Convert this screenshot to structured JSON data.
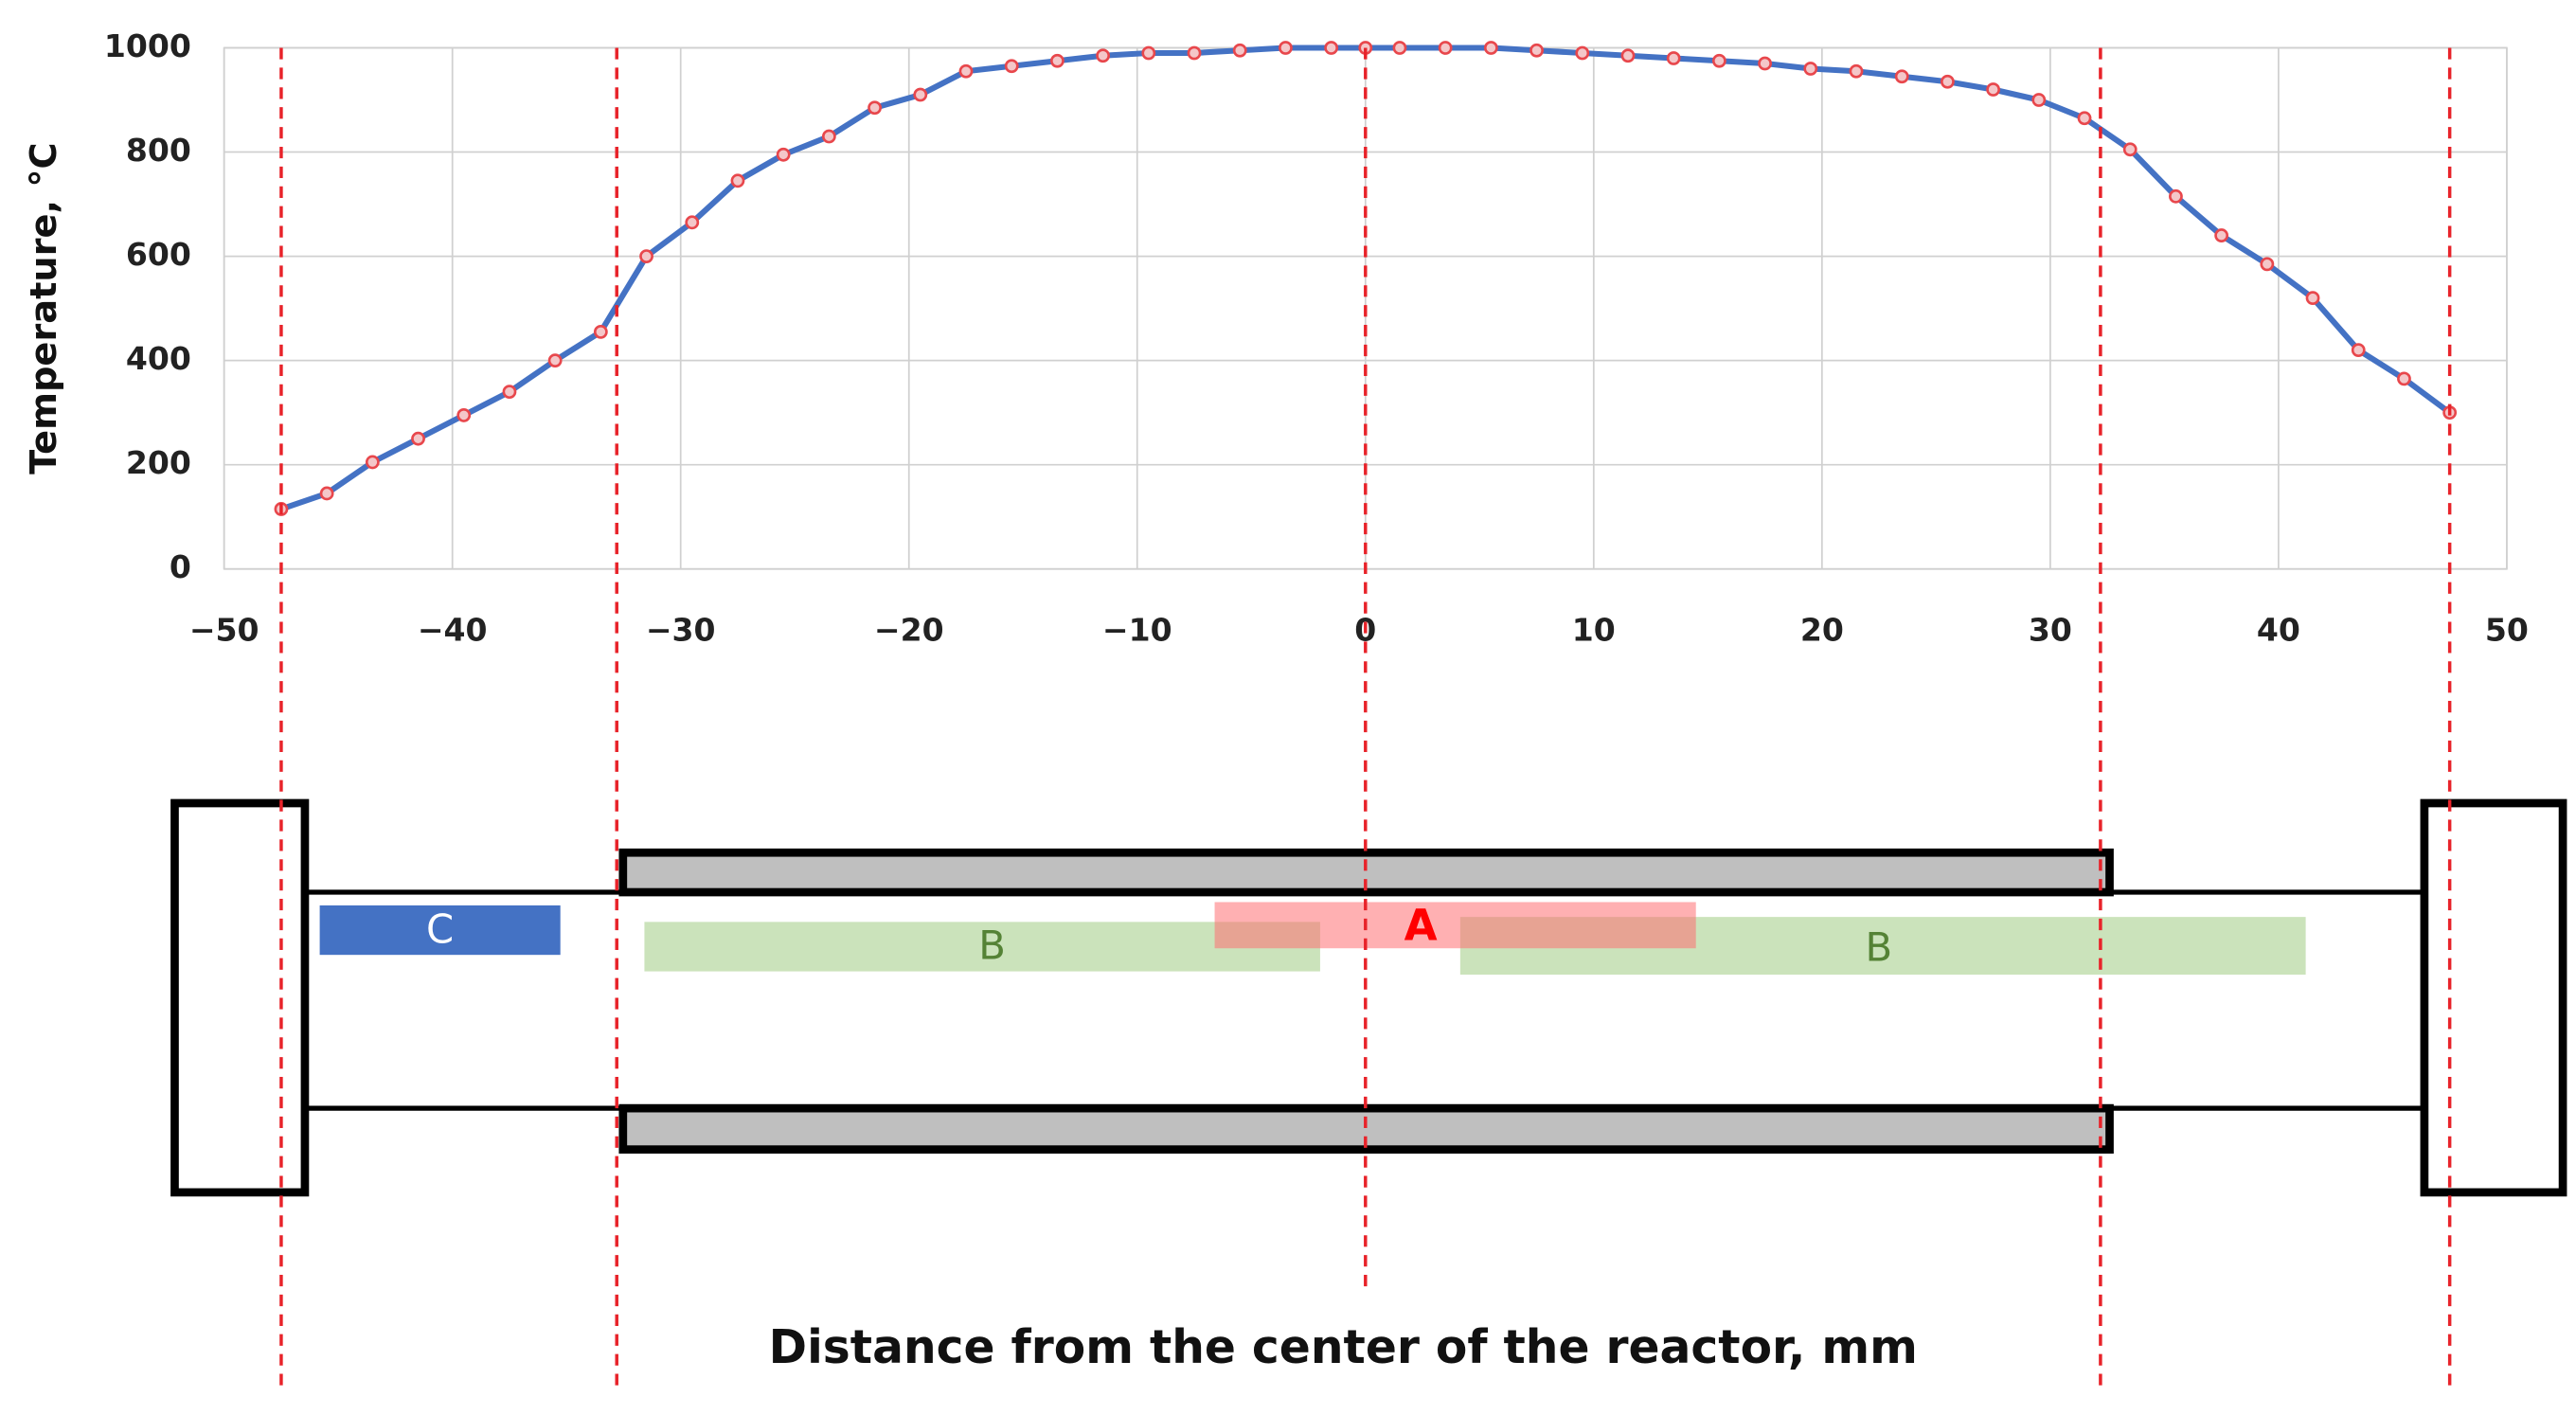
{
  "chart_data": {
    "type": "line",
    "ylabel": "Temperature, °C",
    "xlabel": "Distance from the center of the reactor, mm",
    "x": [
      -47.5,
      -45.5,
      -43.5,
      -41.5,
      -39.5,
      -37.5,
      -35.5,
      -33.5,
      -31.5,
      -29.5,
      -27.5,
      -25.5,
      -23.5,
      -21.5,
      -19.5,
      -17.5,
      -15.5,
      -13.5,
      -11.5,
      -9.5,
      -7.5,
      -5.5,
      -3.5,
      -1.5,
      0,
      1.5,
      3.5,
      5.5,
      7.5,
      9.5,
      11.5,
      13.5,
      15.5,
      17.5,
      19.5,
      21.5,
      23.5,
      25.5,
      27.5,
      29.5,
      31.5,
      33.5,
      35.5,
      37.5,
      39.5,
      41.5,
      43.5,
      45.5,
      47.5
    ],
    "series": [
      {
        "color": "#4472c4",
        "marker_color": "#e8474c",
        "values": [
          115,
          145,
          205,
          250,
          295,
          340,
          400,
          455,
          600,
          665,
          745,
          795,
          830,
          885,
          910,
          955,
          965,
          975,
          985,
          990,
          990,
          995,
          1000,
          1000,
          1000,
          1000,
          1000,
          1000,
          995,
          990,
          985,
          980,
          975,
          970,
          960,
          955,
          945,
          935,
          920,
          900,
          865,
          805,
          715,
          640,
          585,
          520,
          420,
          365,
          300
        ]
      }
    ],
    "xlim": [
      -50,
      50
    ],
    "xticks": [
      {
        "value": -50,
        "label": "−50"
      },
      {
        "value": -40,
        "label": "−40"
      },
      {
        "value": -30,
        "label": "−30"
      },
      {
        "value": -20,
        "label": "−20"
      },
      {
        "value": -10,
        "label": "−10"
      },
      0,
      10,
      20,
      30,
      40,
      50
    ],
    "ylim": [
      0,
      1000
    ],
    "yticks": [
      0,
      200,
      400,
      600,
      800,
      1000
    ],
    "grid": true,
    "reference_lines": [
      -47.5,
      -32.8,
      0,
      32.2,
      47.5
    ],
    "reference_color": "#e8232a"
  },
  "diagram": {
    "labels": [
      "C",
      "B",
      "A",
      "B"
    ]
  }
}
